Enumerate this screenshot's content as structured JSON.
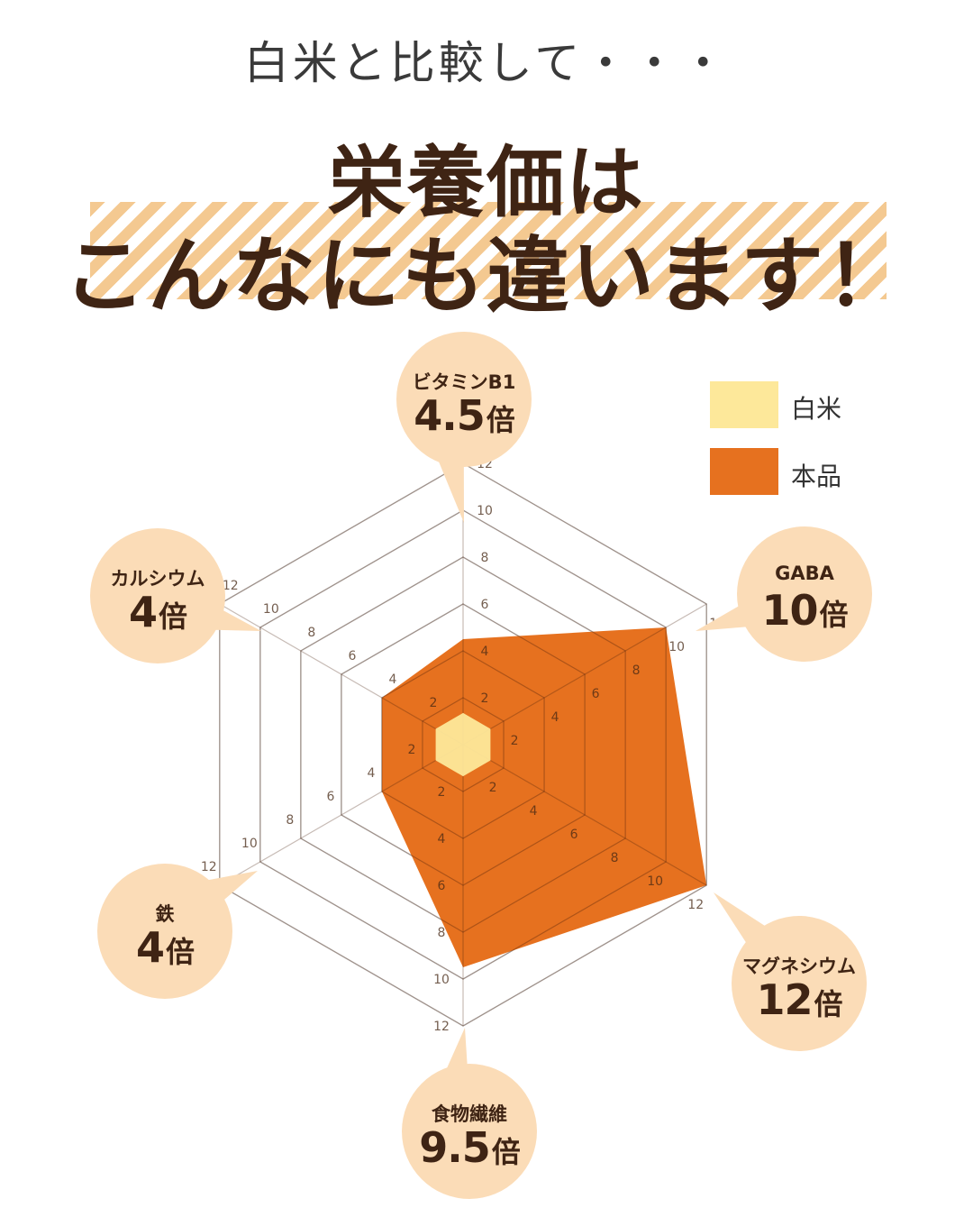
{
  "header": {
    "subtitle": "白米と比較して・・・",
    "title_line1": "栄養価は",
    "title_line2": "こんなにも違います！"
  },
  "legend": [
    {
      "label": "白米",
      "color": "#fde89a"
    },
    {
      "label": "本品",
      "color": "#e6711f"
    }
  ],
  "colors": {
    "callout_bg": "#fbdcb7",
    "white_rice": "#fde89a",
    "product": "#e6711f",
    "text": "#3f2414",
    "stripe": "#f4c991"
  },
  "callouts": [
    {
      "name": "ビタミンB1",
      "value": "4.5",
      "unit": "倍"
    },
    {
      "name": "GABA",
      "value": "10",
      "unit": "倍"
    },
    {
      "name": "マグネシウム",
      "value": "12",
      "unit": "倍"
    },
    {
      "name": "食物繊維",
      "value": "9.5",
      "unit": "倍"
    },
    {
      "name": "鉄",
      "value": "4",
      "unit": "倍"
    },
    {
      "name": "カルシウム",
      "value": "4",
      "unit": "倍"
    }
  ],
  "chart_data": {
    "type": "radar",
    "categories": [
      "ビタミンB1",
      "GABA",
      "マグネシウム",
      "食物繊維",
      "鉄",
      "カルシウム"
    ],
    "range": [
      0,
      12
    ],
    "ticks": [
      2,
      4,
      6,
      8,
      10,
      12
    ],
    "series": [
      {
        "name": "白米",
        "values": [
          1,
          1,
          1,
          1,
          1,
          1
        ]
      },
      {
        "name": "本品",
        "values": [
          4.5,
          10,
          12,
          9.5,
          4,
          4
        ]
      }
    ]
  }
}
